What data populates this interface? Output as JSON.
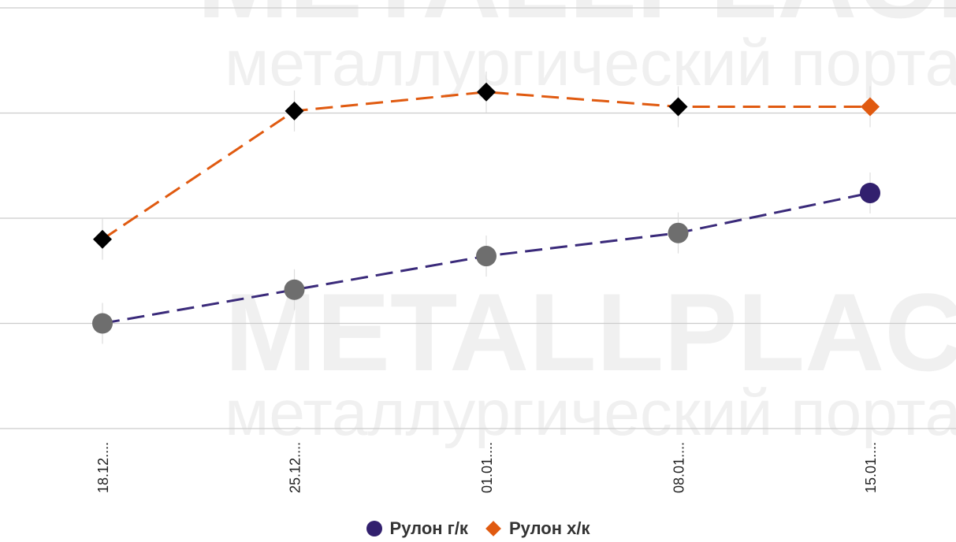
{
  "watermark": {
    "brand": "METALLPLACE.RU",
    "tagline": "металлургический портал"
  },
  "colors": {
    "series1_line": "#3a2a7a",
    "series1_marker": "#6e6e6e",
    "series1_last_marker": "#32206e",
    "series2_line": "#e05a10",
    "series2_marker": "#000000",
    "series2_last_marker": "#e05a10",
    "grid": "#cccccc"
  },
  "chart_data": {
    "type": "line",
    "categories": [
      "18.12....",
      "25.12....",
      "01.01....",
      "08.01....",
      "15.01...."
    ],
    "series": [
      {
        "name": "Рулон г/к",
        "values": [
          10.0,
          10.8,
          11.6,
          12.15,
          13.1
        ],
        "marker": "circle"
      },
      {
        "name": "Рулон х/к",
        "values": [
          12.0,
          15.05,
          15.5,
          15.15,
          15.15
        ],
        "marker": "diamond"
      }
    ],
    "ylim": [
      7.5,
      17.5
    ],
    "y_gridlines": [
      7.5,
      10.0,
      12.5,
      15.0,
      17.5
    ],
    "grid": true,
    "y_axis_labels_visible": false,
    "legend_position": "bottom-center"
  }
}
